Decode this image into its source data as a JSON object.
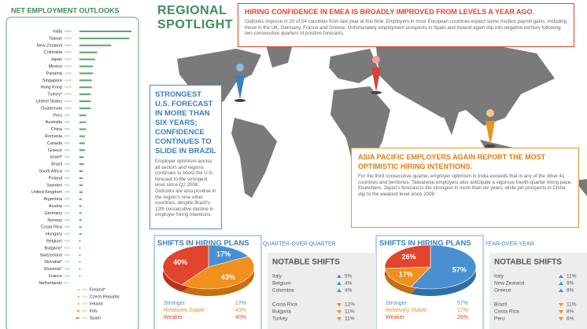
{
  "header": {
    "title": "REGIONAL SPOTLIGHT"
  },
  "callouts": [
    {
      "title": "HIRING CONFIDENCE IN EMEA IS BROADLY IMPROVED FROM LEVELS A YEAR AGO.",
      "text": "Outlooks improve in 20 of 24 countries from last year at this time. Employers in most European countries expect some modest payroll gains, including those in the UK, Germany, France and Greece. Unfortunately employment prospects in Spain and Ireland again slip into negative territory following two consecutive quarters of positive forecasts."
    },
    {
      "title": "STRONGEST U.S. FORECAST IN MORE THAN SIX YEARS; CONFIDENCE CONTINUES TO SLIDE IN BRAZIL",
      "text": "Employer optimism across all sectors and regions continues to boost the U.S. forecast to the strongest level since Q2 2008. Outlooks are also positive in the region's nine other countries, despite Brazil's 12th consecutive decline in employer hiring intentions."
    },
    {
      "title": "ASIA PACIFIC EMPLOYERS AGAIN REPORT THE MOST OPTIMISTIC HIRING INTENTIONS.",
      "text": "For the third consecutive quarter, employer optimism in India exceeds that in any of the other 41 countries and territories. Taiwanese employers also anticipate a vigorous fourth-quarter hiring pace. Elsewhere, Japan's forecast is the strongest in more than six years, while job prospects in China slip to the weakest level since 2009."
    }
  ],
  "notable_shifts": [
    {
      "title": "NOTABLE SHIFTS",
      "up": [
        [
          "Italy",
          "5%"
        ],
        [
          "Belgium",
          "4%"
        ],
        [
          "Colombia",
          "4%"
        ]
      ],
      "down": [
        [
          "Costa Rica",
          "12%"
        ],
        [
          "Bulgaria",
          "11%"
        ],
        [
          "Turkey",
          "11%"
        ]
      ]
    },
    {
      "title": "NOTABLE SHIFTS",
      "up": [
        [
          "Italy",
          "11%"
        ],
        [
          "New Zealand",
          "9%"
        ],
        [
          "Greece",
          "8%"
        ]
      ],
      "down": [
        [
          "Brazil",
          "11%"
        ],
        [
          "Costa Rica",
          "8%"
        ],
        [
          "Peru",
          "6%"
        ]
      ]
    }
  ],
  "chart_data": [
    {
      "type": "bar",
      "orientation": "horizontal",
      "title": "NET EMPLOYMENT OUTLOOKS",
      "categories": [
        "India",
        "Taiwan",
        "New Zealand",
        "Colombia",
        "Japan",
        "Mexico",
        "Panama",
        "Singapore",
        "Hong Kong",
        "Turkey*",
        "United States",
        "Guatemala",
        "Peru",
        "Australia",
        "China",
        "Romania",
        "Canada",
        "Greece",
        "Israel*",
        "Brazil",
        "South Africa",
        "Poland",
        "Sweden",
        "United Kingdom",
        "Argentina",
        "Austria",
        "Germany",
        "Norway",
        "Costa Rica",
        "Hungary",
        "Belgium",
        "Bulgaria*",
        "Switzerland",
        "Slovakia*",
        "Slovenia*",
        "France",
        "Netherlands",
        "Finland*",
        "Czech Republic",
        "Ireland",
        "Italy",
        "Spain"
      ],
      "values": [
        46,
        44,
        28,
        16,
        14,
        12,
        12,
        11,
        11,
        10,
        10,
        10,
        6,
        6,
        6,
        5,
        5,
        5,
        4,
        4,
        3,
        3,
        3,
        3,
        2,
        2,
        2,
        2,
        2,
        2,
        1,
        1,
        1,
        1,
        1,
        1,
        0,
        -1,
        -1,
        -1,
        -2,
        -3
      ],
      "value_labels": [
        "+46%",
        "+44%",
        "+28%",
        "+16%",
        "+14%",
        "+12%",
        "+12%",
        "+11%",
        "+11%",
        "+10%",
        "+10%",
        "+10%",
        "+6%",
        "+6%",
        "+6%",
        "+5%",
        "+5%",
        "+5%",
        "+4%",
        "+4%",
        "+3%",
        "+3%",
        "+3%",
        "+3%",
        "+2%",
        "+2%",
        "+2%",
        "+2%",
        "+2%",
        "+2%",
        "+1%",
        "+1%",
        "+1%",
        "+1%",
        "+1%",
        "+1%",
        "0%",
        "-1%",
        "-1%",
        "-1%",
        "-2%",
        "-3%"
      ],
      "color": "#5aa469",
      "negative_color": "#f0901e",
      "xlim": [
        -4,
        48
      ]
    },
    {
      "type": "pie",
      "title": "SHIFTS IN HIRING PLANS",
      "subtitle": "QUARTER-OVER-QUARTER",
      "categories": [
        "Stronger",
        "Relatively Stable",
        "Weaker"
      ],
      "values": [
        17,
        43,
        40
      ],
      "value_labels": [
        "17%",
        "43%",
        "40%"
      ],
      "colors": [
        "#4a90d0",
        "#f0901e",
        "#e2452d"
      ]
    },
    {
      "type": "pie",
      "title": "SHIFTS IN HIRING PLANS",
      "subtitle": "YEAR-OVER-YEAR",
      "categories": [
        "Stronger",
        "Relatively Stable",
        "Weaker"
      ],
      "values": [
        57,
        17,
        26
      ],
      "value_labels": [
        "57%",
        "17%",
        "26%"
      ],
      "colors": [
        "#4a90d0",
        "#f0901e",
        "#e2452d"
      ]
    }
  ]
}
